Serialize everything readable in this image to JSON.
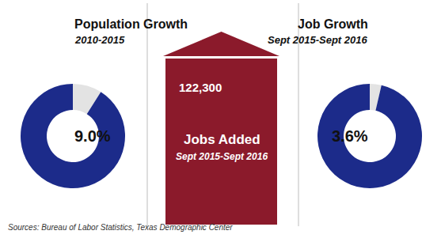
{
  "chart_data": [
    {
      "type": "donut",
      "title": "Population Growth",
      "subtitle": "2010-2015",
      "values": [
        9.0,
        91.0
      ],
      "colors": [
        "#e3e3e3",
        "#1c2b8a"
      ],
      "annotations": [
        "9.0%"
      ]
    },
    {
      "type": "donut",
      "title": "Job Growth",
      "subtitle": "Sept 2015-Sept 2016",
      "values": [
        3.6,
        96.4
      ],
      "colors": [
        "#e3e3e3",
        "#1c2b8a"
      ],
      "annotations": [
        "3.6%"
      ]
    }
  ],
  "jobs_panel": {
    "label": "122,300",
    "title": "Jobs Added",
    "subtitle": "Sept 2015-Sept 2016",
    "color": "#8b1a2b"
  },
  "source": "Sources: Bureau of Labor Statistics, Texas Demographic Center"
}
